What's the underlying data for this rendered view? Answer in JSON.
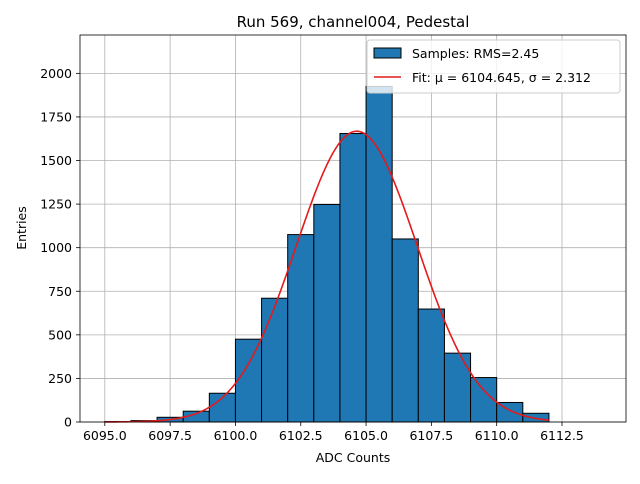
{
  "chart_data": {
    "type": "bar",
    "title": "Run 569, channel004, Pedestal",
    "xlabel": "ADC Counts",
    "ylabel": "Entries",
    "xlim": [
      6094.05,
      6114.95
    ],
    "ylim": [
      0,
      2220
    ],
    "x_ticks": [
      6095.0,
      6097.5,
      6100.0,
      6102.5,
      6105.0,
      6107.5,
      6110.0,
      6112.5
    ],
    "x_tick_labels": [
      "6095.0",
      "6097.5",
      "6100.0",
      "6102.5",
      "6105.0",
      "6107.5",
      "6110.0",
      "6112.5"
    ],
    "y_ticks": [
      0,
      250,
      500,
      750,
      1000,
      1250,
      1500,
      1750,
      2000
    ],
    "y_tick_labels": [
      "0",
      "250",
      "500",
      "750",
      "1000",
      "1250",
      "1500",
      "1750",
      "2000"
    ],
    "grid": true,
    "legend_position": "top-right",
    "histogram": {
      "name": "Samples: RMS=2.45",
      "color": "#1f77b4",
      "bin_edges": [
        6095,
        6096,
        6097,
        6098,
        6099,
        6100,
        6101,
        6102,
        6103,
        6104,
        6105,
        6106,
        6107,
        6108,
        6109,
        6110,
        6111,
        6112
      ],
      "counts": [
        3,
        8,
        27,
        62,
        165,
        475,
        710,
        1075,
        1248,
        1655,
        1925,
        1050,
        648,
        395,
        255,
        112,
        50
      ]
    },
    "fit": {
      "name": "Fit: μ = 6104.645, σ = 2.312",
      "color": "#e41a1c",
      "mu": 6104.645,
      "sigma": 2.312,
      "amplitude": 1668,
      "x_range": [
        6095,
        6112
      ]
    }
  }
}
